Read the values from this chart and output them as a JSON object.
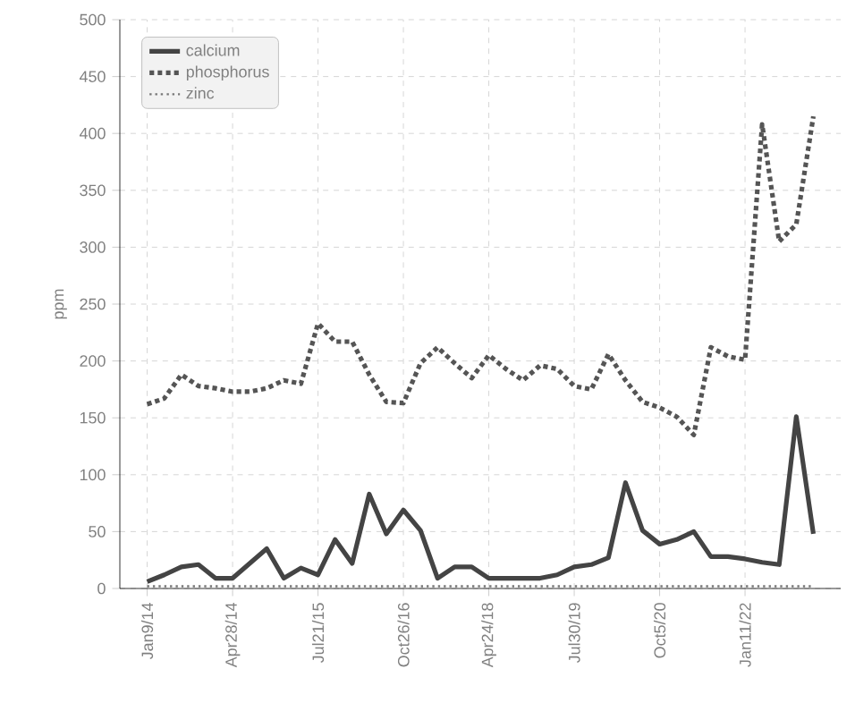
{
  "chart_data": {
    "type": "line",
    "ylabel": "ppm",
    "categories": [
      "Jan9/14",
      null,
      null,
      null,
      null,
      "Apr28/14",
      null,
      null,
      null,
      null,
      "Jul21/15",
      null,
      null,
      null,
      null,
      "Oct26/16",
      null,
      null,
      null,
      null,
      "Apr24/18",
      null,
      null,
      null,
      null,
      "Jul30/19",
      null,
      null,
      null,
      null,
      "Oct5/20",
      null,
      null,
      null,
      null,
      "Jan11/22",
      null,
      null,
      null,
      null
    ],
    "series": [
      {
        "name": "calcium",
        "color": "#444444",
        "line_style": "solid",
        "values": [
          6,
          12,
          19,
          21,
          9,
          9,
          22,
          35,
          9,
          18,
          12,
          43,
          22,
          83,
          48,
          69,
          51,
          9,
          19,
          19,
          9,
          9,
          9,
          9,
          12,
          19,
          21,
          27,
          93,
          51,
          39,
          43,
          50,
          28,
          28,
          26,
          23,
          21,
          151,
          48
        ]
      },
      {
        "name": "phosphorus",
        "color": "#555555",
        "line_style": "dotted",
        "values": [
          162,
          167,
          188,
          178,
          176,
          173,
          173,
          176,
          183,
          180,
          233,
          217,
          217,
          188,
          164,
          163,
          198,
          212,
          198,
          185,
          205,
          193,
          183,
          196,
          193,
          178,
          175,
          206,
          183,
          164,
          159,
          151,
          135,
          212,
          204,
          201,
          408,
          305,
          320,
          415
        ]
      },
      {
        "name": "zinc",
        "color": "#777777",
        "line_style": "dotted",
        "values": [
          2,
          2,
          2,
          2,
          2,
          2,
          2,
          2,
          2,
          2,
          2,
          2,
          2,
          2,
          2,
          2,
          2,
          2,
          2,
          2,
          2,
          2,
          2,
          2,
          2,
          2,
          2,
          2,
          2,
          2,
          2,
          2,
          2,
          2,
          2,
          2,
          2,
          2,
          2,
          2
        ]
      }
    ],
    "ylim": [
      0,
      500
    ],
    "yticks": [
      0,
      50,
      100,
      150,
      200,
      250,
      300,
      350,
      400,
      450,
      500
    ],
    "grid": true,
    "legend": "top left",
    "marker": "none"
  }
}
